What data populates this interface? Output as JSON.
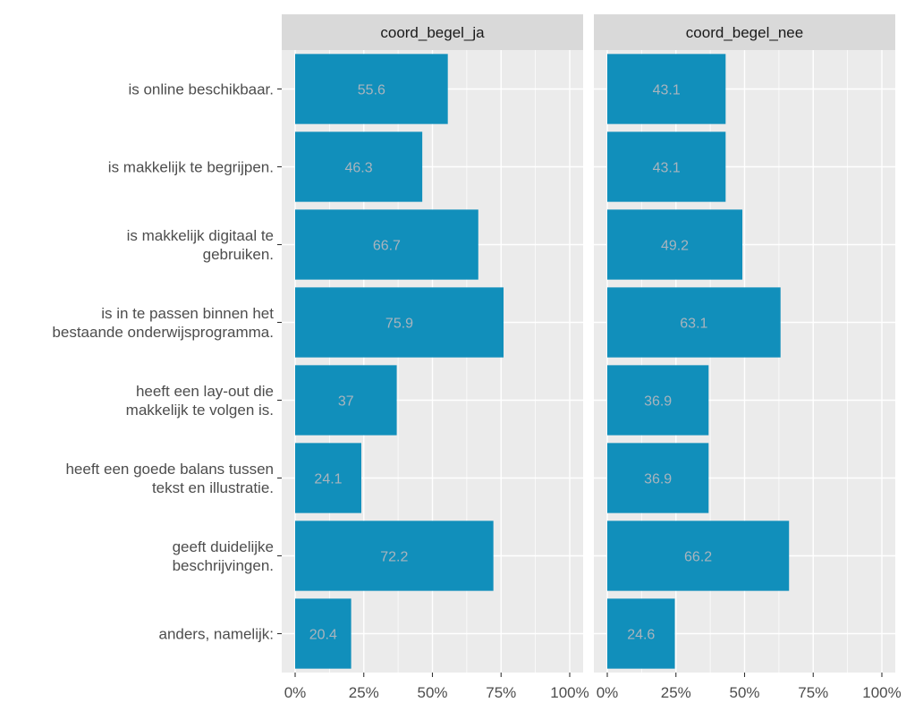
{
  "chart_data": {
    "type": "bar",
    "orientation": "horizontal",
    "facets": [
      "coord_begel_ja",
      "coord_begel_nee"
    ],
    "categories": [
      "is online beschikbaar.",
      "is makkelijk te begrijpen.",
      "is makkelijk digitaal te gebruiken.",
      "is in te passen binnen het bestaande onderwijsprogramma.",
      "heeft een lay-out die makkelijk te volgen is.",
      "heeft een goede balans tussen tekst en illustratie.",
      "geeft duidelijke beschrijvingen.",
      "anders, namelijk:"
    ],
    "category_lines": [
      [
        "is online beschikbaar."
      ],
      [
        "is makkelijk te begrijpen."
      ],
      [
        "is makkelijk digitaal te",
        "gebruiken."
      ],
      [
        "is in te passen binnen het",
        "bestaande onderwijsprogramma."
      ],
      [
        "heeft een lay-out die",
        "makkelijk te volgen is."
      ],
      [
        "heeft een goede balans tussen",
        "tekst en illustratie."
      ],
      [
        "geeft duidelijke",
        "beschrijvingen."
      ],
      [
        "anders, namelijk:"
      ]
    ],
    "series": [
      {
        "facet": "coord_begel_ja",
        "values": [
          55.6,
          46.3,
          66.7,
          75.9,
          37,
          24.1,
          72.2,
          20.4
        ],
        "labels": [
          "55.6",
          "46.3",
          "66.7",
          "75.9",
          "37",
          "24.1",
          "72.2",
          "20.4"
        ]
      },
      {
        "facet": "coord_begel_nee",
        "values": [
          43.1,
          43.1,
          49.2,
          63.1,
          36.9,
          36.9,
          66.2,
          24.6
        ],
        "labels": [
          "43.1",
          "43.1",
          "49.2",
          "63.1",
          "36.9",
          "36.9",
          "66.2",
          "24.6"
        ]
      }
    ],
    "xlim": [
      0,
      100
    ],
    "x_ticks": [
      0,
      25,
      50,
      75,
      100
    ],
    "x_tick_labels": [
      "0%",
      "25%",
      "50%",
      "75%",
      "100%"
    ],
    "title": "",
    "xlabel": "",
    "ylabel": "",
    "grid": true,
    "colors": {
      "bar": "#118fbb",
      "bar_label": "#a9b4bd",
      "panel_bg": "#ebebeb",
      "grid": "#ffffff",
      "strip_bg": "#d9d9d9",
      "text": "#4d4d4d"
    }
  }
}
